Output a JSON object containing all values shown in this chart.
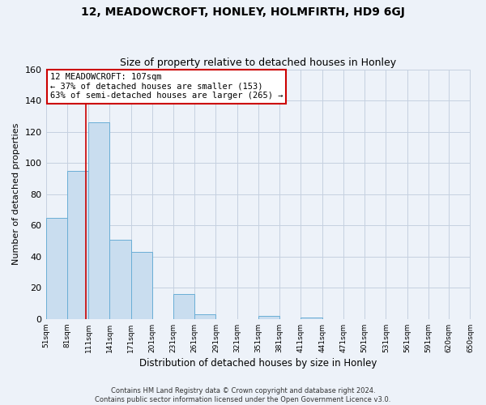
{
  "title": "12, MEADOWCROFT, HONLEY, HOLMFIRTH, HD9 6GJ",
  "subtitle": "Size of property relative to detached houses in Honley",
  "xlabel": "Distribution of detached houses by size in Honley",
  "ylabel": "Number of detached properties",
  "bar_bins": [
    51,
    81,
    111,
    141,
    171,
    201,
    231,
    261,
    291,
    321,
    351,
    381,
    411,
    441,
    471,
    501,
    531,
    561,
    591,
    620,
    650
  ],
  "bar_values": [
    65,
    95,
    126,
    51,
    43,
    0,
    16,
    3,
    0,
    0,
    2,
    0,
    1,
    0,
    0,
    0,
    0,
    0,
    0,
    0
  ],
  "bar_color": "#c9ddef",
  "bar_edge_color": "#6aaed6",
  "red_line_x": 107,
  "ylim": [
    0,
    160
  ],
  "yticks": [
    0,
    20,
    40,
    60,
    80,
    100,
    120,
    140,
    160
  ],
  "annotation_line1": "12 MEADOWCROFT: 107sqm",
  "annotation_line2": "← 37% of detached houses are smaller (153)",
  "annotation_line3": "63% of semi-detached houses are larger (265) →",
  "annotation_box_edge": "#cc0000",
  "footer1": "Contains HM Land Registry data © Crown copyright and database right 2024.",
  "footer2": "Contains public sector information licensed under the Open Government Licence v3.0.",
  "background_color": "#edf2f9",
  "plot_background": "#edf2f9",
  "grid_color": "#c5d0e0",
  "title_fontsize": 10,
  "subtitle_fontsize": 9,
  "tick_labels": [
    "51sqm",
    "81sqm",
    "111sqm",
    "141sqm",
    "171sqm",
    "201sqm",
    "231sqm",
    "261sqm",
    "291sqm",
    "321sqm",
    "351sqm",
    "381sqm",
    "411sqm",
    "441sqm",
    "471sqm",
    "501sqm",
    "531sqm",
    "561sqm",
    "591sqm",
    "620sqm",
    "650sqm"
  ]
}
